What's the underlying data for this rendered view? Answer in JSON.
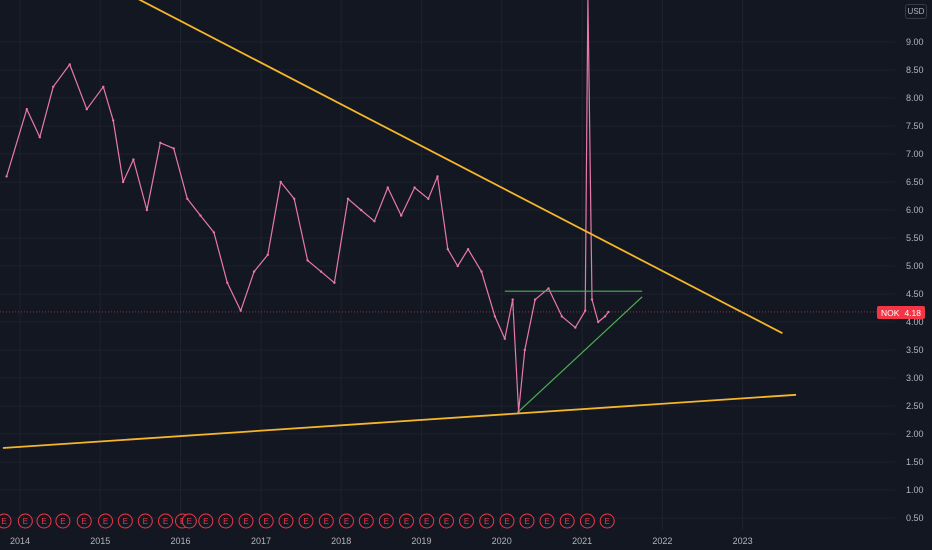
{
  "currency_label": "USD",
  "price_tag": {
    "symbol": "NOK",
    "value": "4.18",
    "price": 4.18,
    "color": "#f23645"
  },
  "colors": {
    "background": "#131722",
    "candles": "#e879a9",
    "trendline": "#f5b62a",
    "triangle": "#4caf50",
    "price_tag": "#f23645",
    "earnings": "#f23645"
  },
  "earnings_marker_label": "E",
  "chart_data": {
    "type": "line",
    "x_range": [
      "2013-11-01",
      "2023-12-31"
    ],
    "ylim": [
      0.35,
      9.45
    ],
    "grid": true,
    "x_ticks": [
      "2014",
      "2015",
      "2016",
      "2017",
      "2018",
      "2019",
      "2020",
      "2021",
      "2022",
      "2023"
    ],
    "y_ticks": [
      "9.00",
      "8.50",
      "8.00",
      "7.50",
      "7.00",
      "6.50",
      "6.00",
      "5.50",
      "5.00",
      "4.50",
      "4.00",
      "3.50",
      "3.00",
      "2.50",
      "2.00",
      "1.50",
      "1.00",
      "0.50"
    ],
    "series": [
      {
        "symbol": "NOK",
        "x": [
          "2013-11-01",
          "2014-02-01",
          "2014-04-01",
          "2014-06-01",
          "2014-08-15",
          "2014-11-01",
          "2015-01-15",
          "2015-03-01",
          "2015-04-15",
          "2015-06-01",
          "2015-08-01",
          "2015-10-01",
          "2015-12-01",
          "2016-02-01",
          "2016-04-01",
          "2016-06-01",
          "2016-08-01",
          "2016-10-01",
          "2016-12-01",
          "2017-02-01",
          "2017-04-01",
          "2017-06-01",
          "2017-08-01",
          "2017-10-01",
          "2017-12-01",
          "2018-02-01",
          "2018-04-01",
          "2018-06-01",
          "2018-08-01",
          "2018-10-01",
          "2018-12-01",
          "2019-02-01",
          "2019-03-15",
          "2019-05-01",
          "2019-06-15",
          "2019-08-01",
          "2019-10-01",
          "2019-12-01",
          "2020-01-15",
          "2020-02-20",
          "2020-03-18",
          "2020-04-15",
          "2020-06-01",
          "2020-08-01",
          "2020-10-01",
          "2020-12-01",
          "2021-01-15",
          "2021-01-27",
          "2021-02-15",
          "2021-03-15",
          "2021-04-15",
          "2021-05-01"
        ],
        "values": [
          6.6,
          7.8,
          7.3,
          8.2,
          8.6,
          7.8,
          8.2,
          7.6,
          6.5,
          6.9,
          6.0,
          7.2,
          7.1,
          6.2,
          5.9,
          5.6,
          4.7,
          4.2,
          4.9,
          5.2,
          6.5,
          6.2,
          5.1,
          4.9,
          4.7,
          6.2,
          6.0,
          5.8,
          6.4,
          5.9,
          6.4,
          6.2,
          6.6,
          5.3,
          5.0,
          5.3,
          4.9,
          4.1,
          3.7,
          4.4,
          2.4,
          3.5,
          4.4,
          4.6,
          4.1,
          3.9,
          4.2,
          9.8,
          4.4,
          4.0,
          4.1,
          4.18
        ]
      }
    ],
    "annotations": [
      {
        "type": "trendline",
        "color": "#f5b62a",
        "x": [
          "2014-02-01",
          "2023-07-01"
        ],
        "y": [
          10.8,
          3.8
        ]
      },
      {
        "type": "trendline",
        "color": "#f5b62a",
        "x": [
          "2013-10-15",
          "2023-09-01"
        ],
        "y": [
          1.75,
          2.7
        ]
      },
      {
        "type": "horizontal_segment",
        "color": "#4caf50",
        "x": [
          "2020-01-15",
          "2021-10-01"
        ],
        "y": [
          4.55,
          4.55
        ]
      },
      {
        "type": "rising_segment",
        "color": "#4caf50",
        "x": [
          "2020-03-18",
          "2021-10-01"
        ],
        "y": [
          2.4,
          4.45
        ]
      }
    ],
    "earnings_dates": [
      "2013-10-20",
      "2014-01-25",
      "2014-04-20",
      "2014-07-15",
      "2014-10-20",
      "2015-01-25",
      "2015-04-25",
      "2015-07-25",
      "2015-10-25",
      "2016-01-10",
      "2016-02-10",
      "2016-04-25",
      "2016-07-25",
      "2016-10-25",
      "2017-01-25",
      "2017-04-25",
      "2017-07-25",
      "2017-10-25",
      "2018-01-25",
      "2018-04-25",
      "2018-07-25",
      "2018-10-25",
      "2019-01-25",
      "2019-04-25",
      "2019-07-25",
      "2019-10-25",
      "2020-01-25",
      "2020-04-25",
      "2020-07-25",
      "2020-10-25",
      "2021-01-25",
      "2021-04-25"
    ]
  }
}
